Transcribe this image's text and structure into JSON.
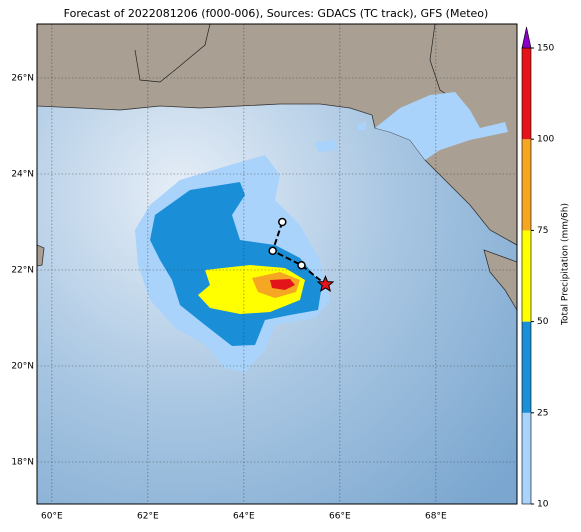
{
  "title": "Forecast of 2022081206 (f000-006), Sources: GDACS (TC track), GFS (Meteo)",
  "map": {
    "xlim": [
      59.69,
      69.69
    ],
    "ylim": [
      17.125,
      27.125
    ],
    "xticks": [
      {
        "value": 60,
        "label": "60°E"
      },
      {
        "value": 62,
        "label": "62°E"
      },
      {
        "value": 64,
        "label": "64°E"
      },
      {
        "value": 66,
        "label": "66°E"
      },
      {
        "value": 68,
        "label": "68°E"
      }
    ],
    "yticks": [
      {
        "value": 18,
        "label": "18°N"
      },
      {
        "value": 20,
        "label": "20°N"
      },
      {
        "value": 22,
        "label": "22°N"
      },
      {
        "value": 24,
        "label": "24°N"
      },
      {
        "value": 26,
        "label": "26°N"
      }
    ],
    "grid": true,
    "track": {
      "lon": [
        64.8,
        64.6,
        65.2,
        65.7
      ],
      "lat": [
        23.0,
        22.4,
        22.1,
        21.7
      ]
    }
  },
  "colorbar": {
    "label": "Total Precipitation (mm/6h)",
    "ticks": [
      10,
      25,
      50,
      75,
      100,
      150
    ],
    "colors": [
      "#aad3fb",
      "#1a8fd8",
      "#ffff00",
      "#f5a623",
      "#e3141a"
    ],
    "extend_color": "#8a00c8"
  }
}
